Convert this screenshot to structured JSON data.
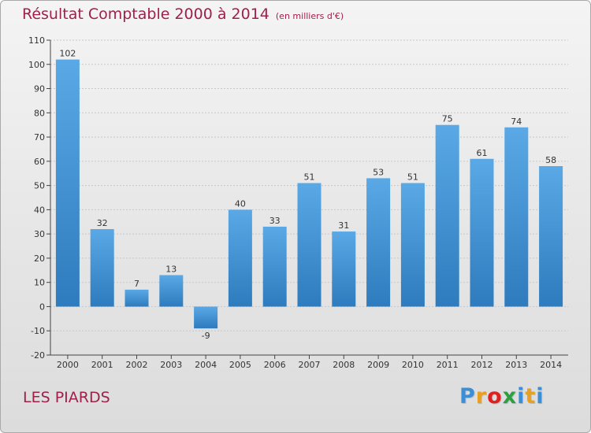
{
  "header": {
    "title": "Résultat Comptable 2000 à 2014",
    "subtitle": "(en milliers d'€)"
  },
  "footer": {
    "commune": "LES PIARDS",
    "brand": "Proxiti",
    "brand_colors": [
      "#3a8fd6",
      "#e8a020",
      "#e02020",
      "#2aa040",
      "#3a8fd6",
      "#e8a020",
      "#3a8fd6"
    ]
  },
  "colors": {
    "title": "#a0204a",
    "bar_top": "#5aa9e6",
    "bar_bottom": "#2e7bbd",
    "grid": "#c8c8c8",
    "axis": "#444444",
    "text": "#333333"
  },
  "chart_data": {
    "type": "bar",
    "title": "Résultat Comptable 2000 à 2014",
    "subtitle": "(en milliers d'€)",
    "categories": [
      "2000",
      "2001",
      "2002",
      "2003",
      "2004",
      "2005",
      "2006",
      "2007",
      "2008",
      "2009",
      "2010",
      "2011",
      "2012",
      "2013",
      "2014"
    ],
    "values": [
      102,
      32,
      7,
      13,
      -9,
      40,
      33,
      51,
      31,
      53,
      51,
      75,
      61,
      74,
      58
    ],
    "ylim": [
      -20,
      110
    ],
    "yticks": [
      -20,
      -10,
      0,
      10,
      20,
      30,
      40,
      50,
      60,
      70,
      80,
      90,
      100,
      110
    ],
    "grid": true,
    "legend": "none"
  }
}
